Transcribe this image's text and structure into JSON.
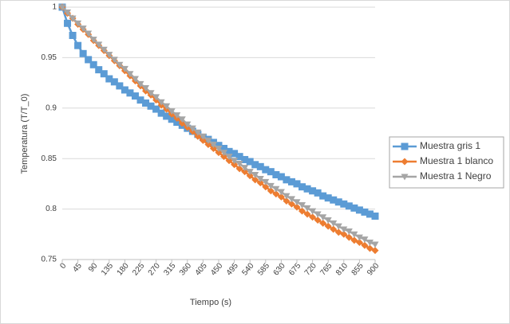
{
  "chart_data": {
    "type": "line",
    "y_label": "Temperatura (T/T_0)",
    "x_label": "Tiempo (s)",
    "x": [
      0,
      15,
      30,
      45,
      60,
      75,
      90,
      105,
      120,
      135,
      150,
      165,
      180,
      195,
      210,
      225,
      240,
      255,
      270,
      285,
      300,
      315,
      330,
      345,
      360,
      375,
      390,
      405,
      420,
      435,
      450,
      465,
      480,
      495,
      510,
      525,
      540,
      555,
      570,
      585,
      600,
      615,
      630,
      645,
      660,
      675,
      690,
      705,
      720,
      735,
      750,
      765,
      780,
      795,
      810,
      825,
      840,
      855,
      870,
      885,
      900
    ],
    "series": [
      {
        "name": "Muestra gris 1",
        "color": "#5b9bd5",
        "marker": "square",
        "values": [
          1,
          0.984,
          0.972,
          0.962,
          0.954,
          0.948,
          0.943,
          0.938,
          0.934,
          0.929,
          0.926,
          0.922,
          0.918,
          0.915,
          0.912,
          0.908,
          0.905,
          0.902,
          0.899,
          0.895,
          0.892,
          0.889,
          0.886,
          0.883,
          0.88,
          0.877,
          0.874,
          0.871,
          0.869,
          0.866,
          0.863,
          0.86,
          0.857,
          0.855,
          0.852,
          0.849,
          0.847,
          0.844,
          0.842,
          0.839,
          0.837,
          0.834,
          0.832,
          0.829,
          0.827,
          0.825,
          0.822,
          0.82,
          0.818,
          0.816,
          0.813,
          0.811,
          0.809,
          0.807,
          0.805,
          0.803,
          0.801,
          0.799,
          0.797,
          0.795,
          0.793
        ]
      },
      {
        "name": "Muestra 1 blanco",
        "color": "#ed7d31",
        "marker": "diamond",
        "values": [
          1,
          0.994,
          0.989,
          0.983,
          0.978,
          0.973,
          0.967,
          0.962,
          0.957,
          0.952,
          0.947,
          0.942,
          0.937,
          0.932,
          0.927,
          0.922,
          0.917,
          0.913,
          0.908,
          0.903,
          0.899,
          0.894,
          0.89,
          0.885,
          0.881,
          0.877,
          0.872,
          0.868,
          0.864,
          0.86,
          0.856,
          0.852,
          0.848,
          0.844,
          0.84,
          0.837,
          0.833,
          0.829,
          0.826,
          0.822,
          0.818,
          0.815,
          0.812,
          0.808,
          0.805,
          0.802,
          0.798,
          0.795,
          0.792,
          0.789,
          0.786,
          0.783,
          0.78,
          0.777,
          0.775,
          0.772,
          0.769,
          0.767,
          0.764,
          0.761,
          0.759
        ]
      },
      {
        "name": "Muestra 1 Negro",
        "color": "#a5a5a5",
        "marker": "triangle-down",
        "values": [
          1,
          0.995,
          0.989,
          0.984,
          0.979,
          0.974,
          0.968,
          0.963,
          0.958,
          0.953,
          0.948,
          0.943,
          0.939,
          0.934,
          0.929,
          0.924,
          0.92,
          0.915,
          0.911,
          0.906,
          0.902,
          0.897,
          0.893,
          0.889,
          0.884,
          0.88,
          0.876,
          0.872,
          0.868,
          0.864,
          0.86,
          0.856,
          0.852,
          0.848,
          0.845,
          0.841,
          0.837,
          0.834,
          0.83,
          0.827,
          0.823,
          0.82,
          0.817,
          0.813,
          0.81,
          0.807,
          0.804,
          0.801,
          0.798,
          0.795,
          0.792,
          0.789,
          0.786,
          0.783,
          0.78,
          0.778,
          0.775,
          0.772,
          0.77,
          0.767,
          0.765
        ]
      }
    ],
    "xlim": [
      0,
      900
    ],
    "xticks": [
      0,
      45,
      90,
      135,
      180,
      225,
      270,
      315,
      360,
      405,
      450,
      495,
      540,
      585,
      630,
      675,
      720,
      765,
      810,
      855,
      900
    ],
    "ylim": [
      0.75,
      1
    ],
    "yticks": [
      0.75,
      0.8,
      0.85,
      0.9,
      0.95,
      1
    ],
    "grid": true,
    "legend": "right"
  }
}
